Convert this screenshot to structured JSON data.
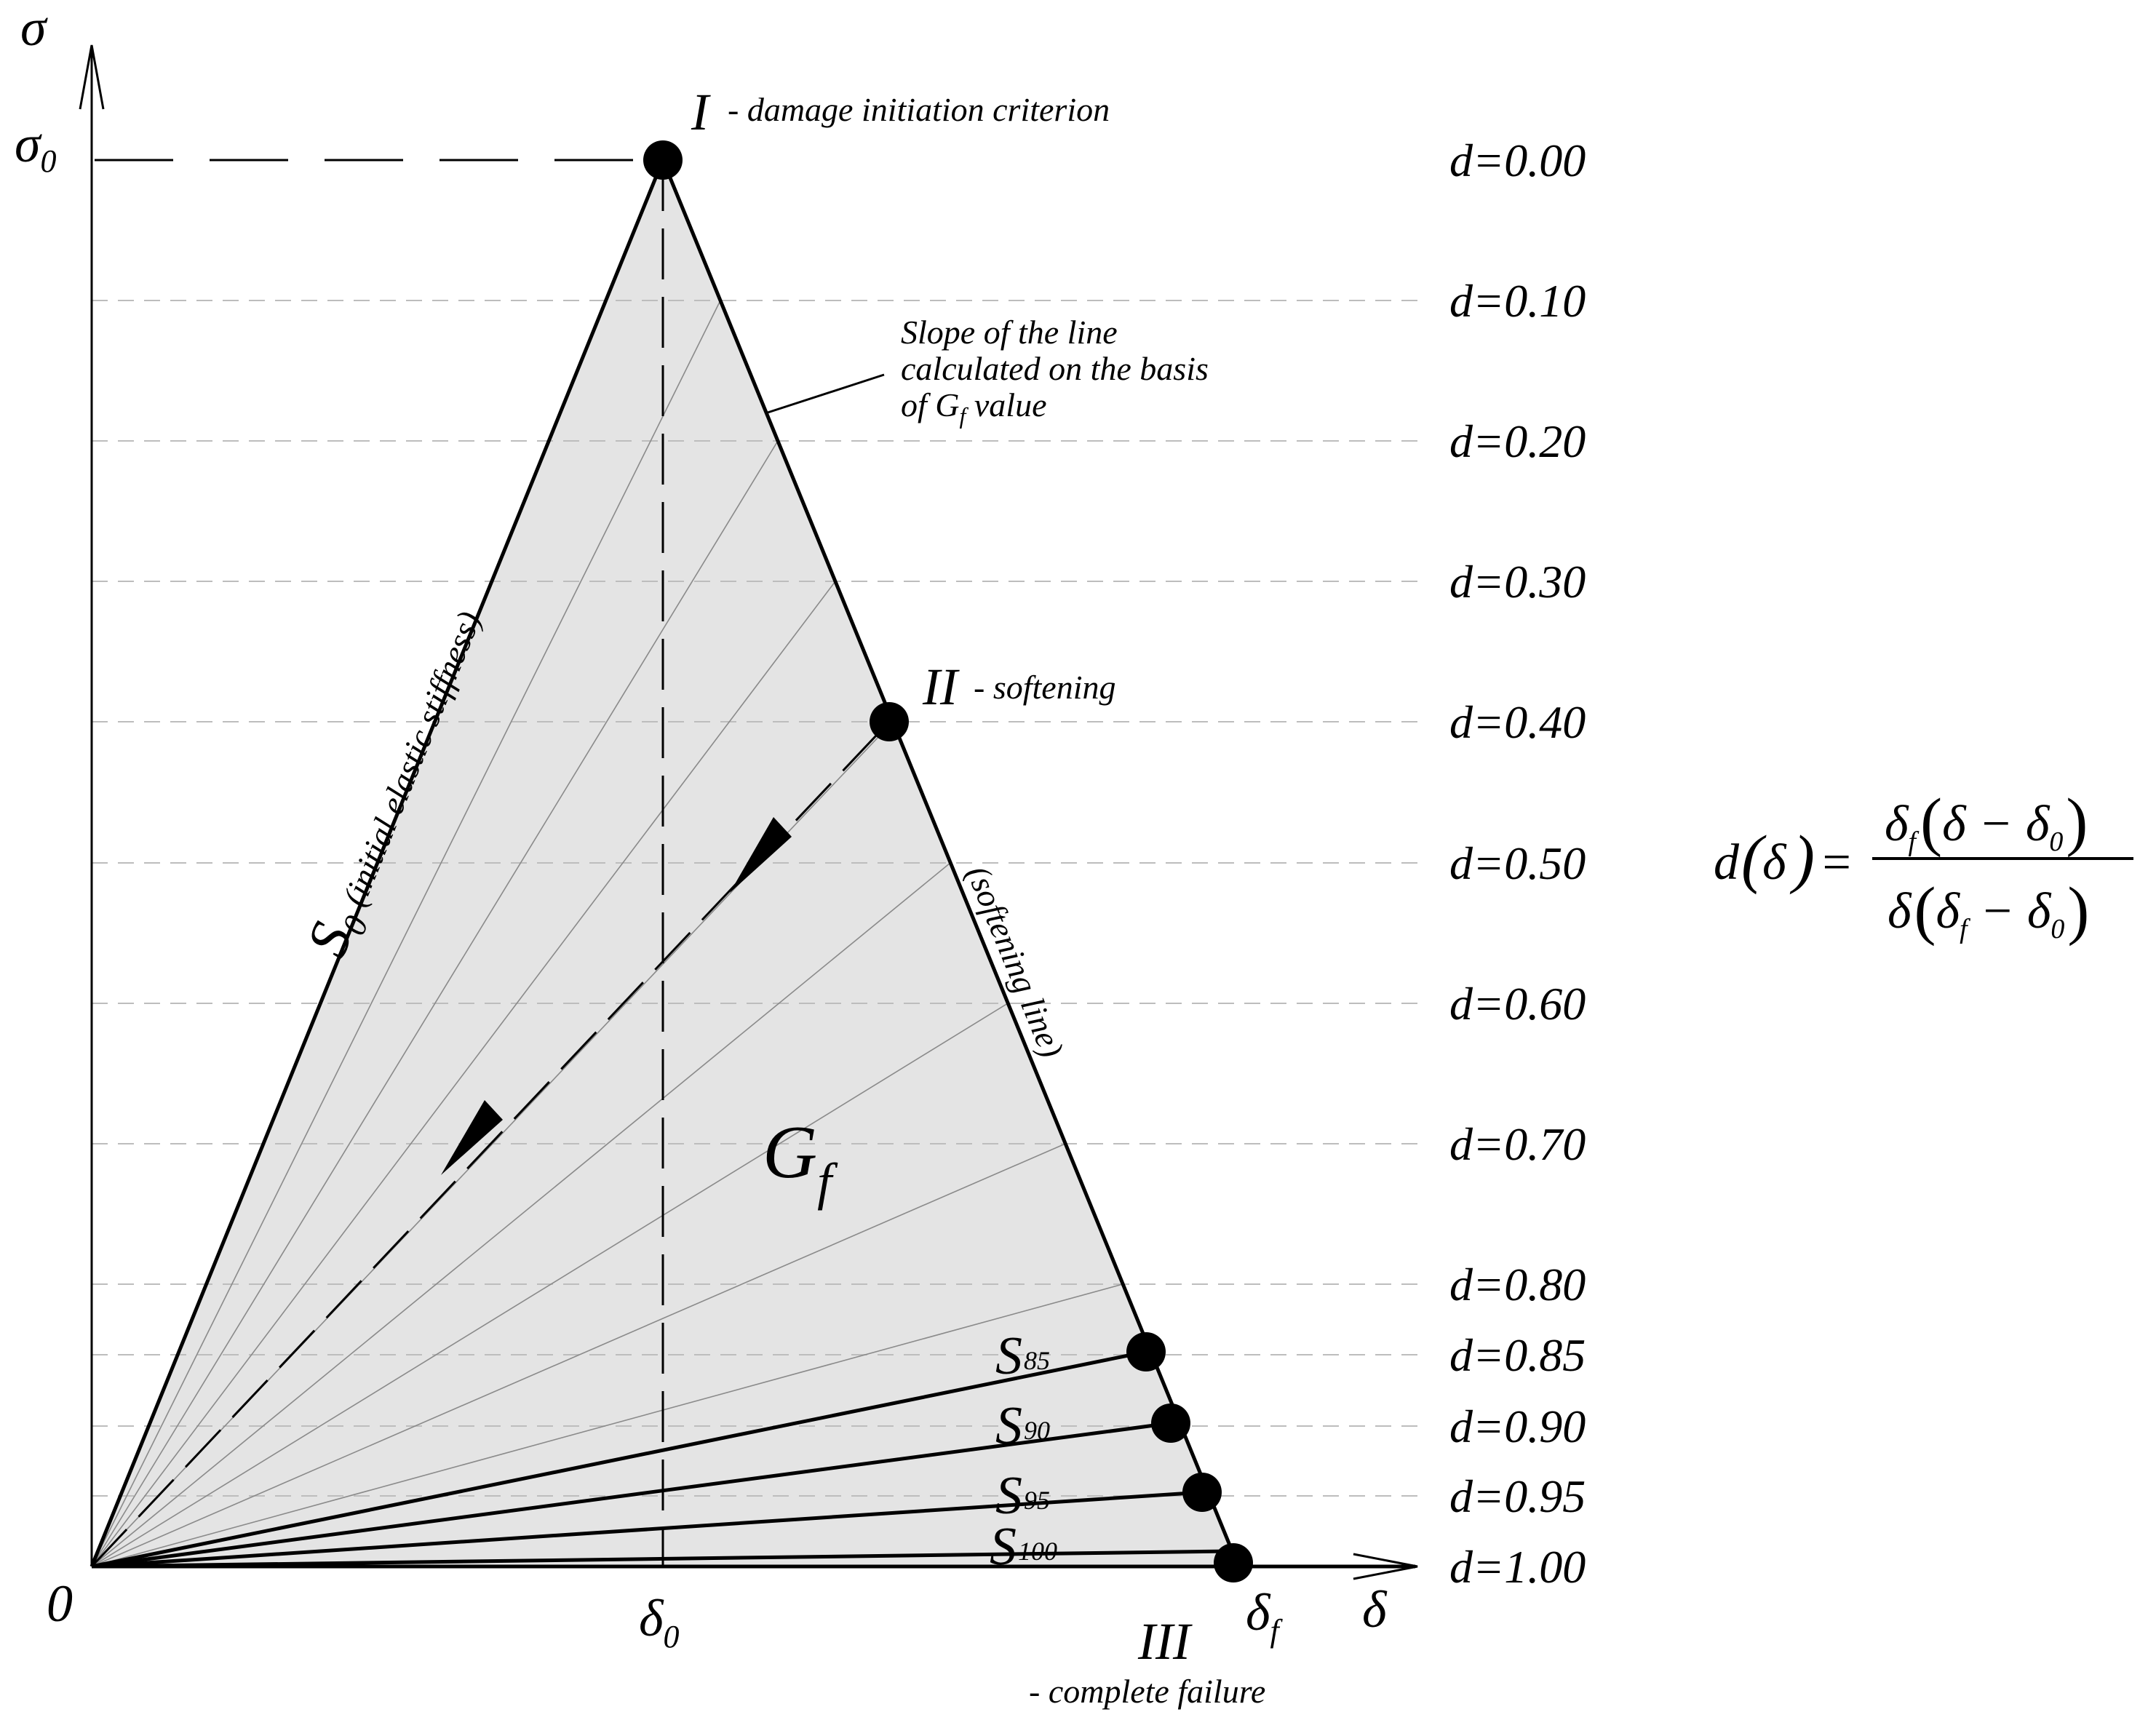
{
  "axes": {
    "y_label": "σ",
    "y_peak_label": "σ",
    "y_peak_sub": "0",
    "x_label": "δ",
    "origin": "0",
    "delta0_label": "δ",
    "delta0_sub": "0",
    "deltaf_label": "δ",
    "deltaf_sub": "f"
  },
  "points": {
    "initiation_numeral": "I",
    "initiation_text": "- damage initiation criterion",
    "softening_numeral": "II",
    "softening_text": "- softening",
    "failure_numeral": "III",
    "failure_text": "- complete failure"
  },
  "labels": {
    "s0_main": "S",
    "s0_sub": "0",
    "s0_desc": "(initial elastic stiffness)",
    "softening_line": "(softening line)",
    "gf_main": "G",
    "gf_sub": "f",
    "slope_note_1": "Slope of the line",
    "slope_note_2": "calculated on the basis",
    "slope_note_3a": "of G",
    "slope_note_3sub": "f",
    "slope_note_3b": " value",
    "s85_main": "S",
    "s85_sub": "85",
    "s90_main": "S",
    "s90_sub": "90",
    "s95_main": "S",
    "s95_sub": "95",
    "s100_main": "S",
    "s100_sub": "100"
  },
  "damage_levels": [
    "d=0.00",
    "d=0.10",
    "d=0.20",
    "d=0.30",
    "d=0.40",
    "d=0.50",
    "d=0.60",
    "d=0.70",
    "d=0.80",
    "d=0.85",
    "d=0.90",
    "d=0.95",
    "d=1.00"
  ],
  "formula": {
    "lhs_d": "d",
    "lhs_arg": "δ",
    "equals": "=",
    "num_a": "δ",
    "num_a_sub": "f",
    "num_b": "δ − δ",
    "num_b_sub": "0",
    "den_a": "δ",
    "den_b": "δ",
    "den_b_sub": "f",
    "den_c": " − δ",
    "den_c_sub": "0"
  },
  "colors": {
    "fill": "#e4e4e4",
    "line": "#000000",
    "grid": "#bdbdbd",
    "thin_line": "#8a8a8a"
  }
}
